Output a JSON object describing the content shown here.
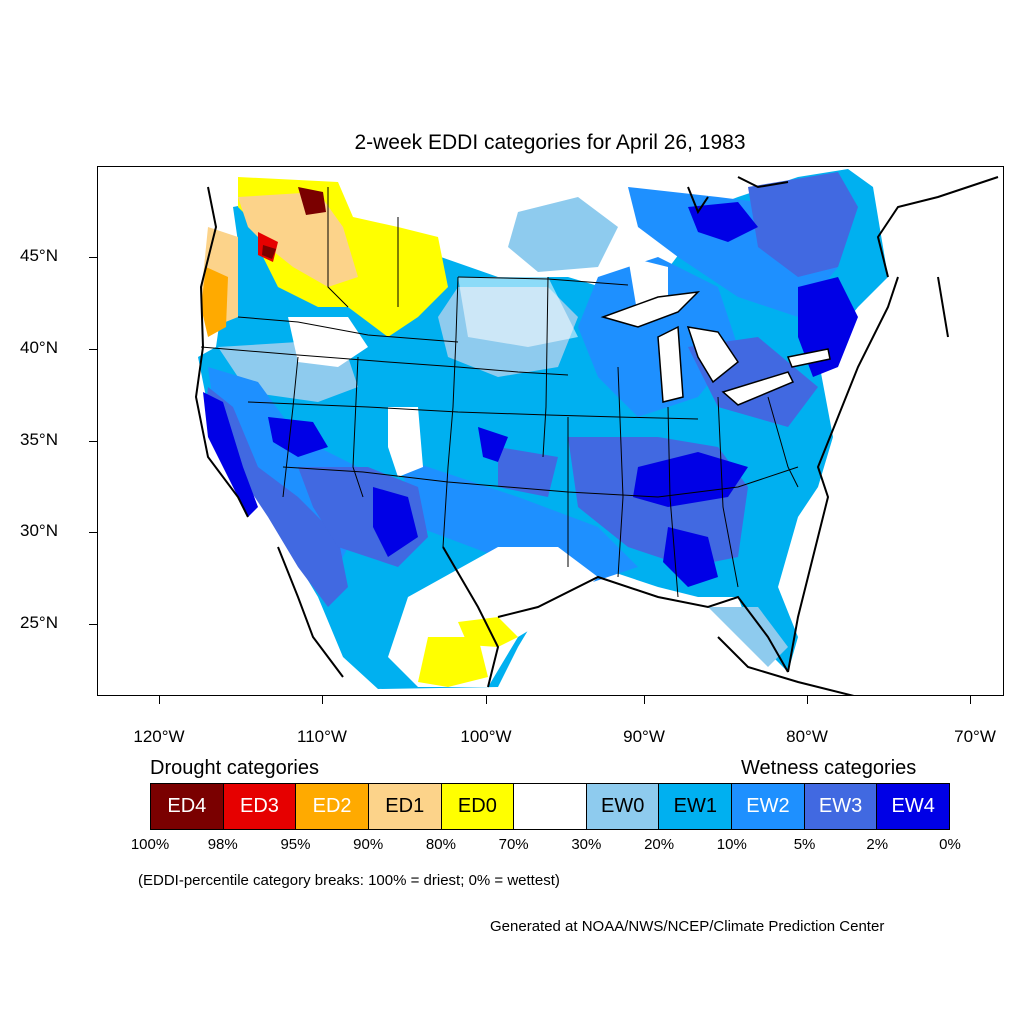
{
  "title": "2-week EDDI categories for April 26, 1983",
  "lat_labels": [
    "45°N",
    "40°N",
    "35°N",
    "30°N",
    "25°N"
  ],
  "lon_labels": [
    "120°W",
    "110°W",
    "100°W",
    "90°W",
    "80°W",
    "70°W"
  ],
  "legend": {
    "drought_heading": "Drought categories",
    "wetness_heading": "Wetness categories",
    "categories": [
      {
        "label": "ED4",
        "color": "#7a0000",
        "text_color": "#ffffff"
      },
      {
        "label": "ED3",
        "color": "#e60000",
        "text_color": "#ffffff"
      },
      {
        "label": "ED2",
        "color": "#ffaa00",
        "text_color": "#ffffff"
      },
      {
        "label": "ED1",
        "color": "#fcd38a",
        "text_color": "#000000"
      },
      {
        "label": "ED0",
        "color": "#ffff00",
        "text_color": "#000000"
      },
      {
        "label": "",
        "color": "#ffffff",
        "text_color": "#000000"
      },
      {
        "label": "EW0",
        "color": "#8ecbee",
        "text_color": "#000000"
      },
      {
        "label": "EW1",
        "color": "#00b0f0",
        "text_color": "#000000"
      },
      {
        "label": "EW2",
        "color": "#1e90ff",
        "text_color": "#ffffff"
      },
      {
        "label": "EW3",
        "color": "#4169e1",
        "text_color": "#ffffff"
      },
      {
        "label": "EW4",
        "color": "#0000e6",
        "text_color": "#ffffff"
      }
    ],
    "breaks": [
      "100%",
      "98%",
      "95%",
      "90%",
      "80%",
      "70%",
      "30%",
      "20%",
      "10%",
      "5%",
      "2%",
      "0%"
    ]
  },
  "note": "(EDDI-percentile category breaks: 100% = driest; 0% = wettest)",
  "credit": "Generated at NOAA/NWS/NCEP/Climate Prediction Center"
}
